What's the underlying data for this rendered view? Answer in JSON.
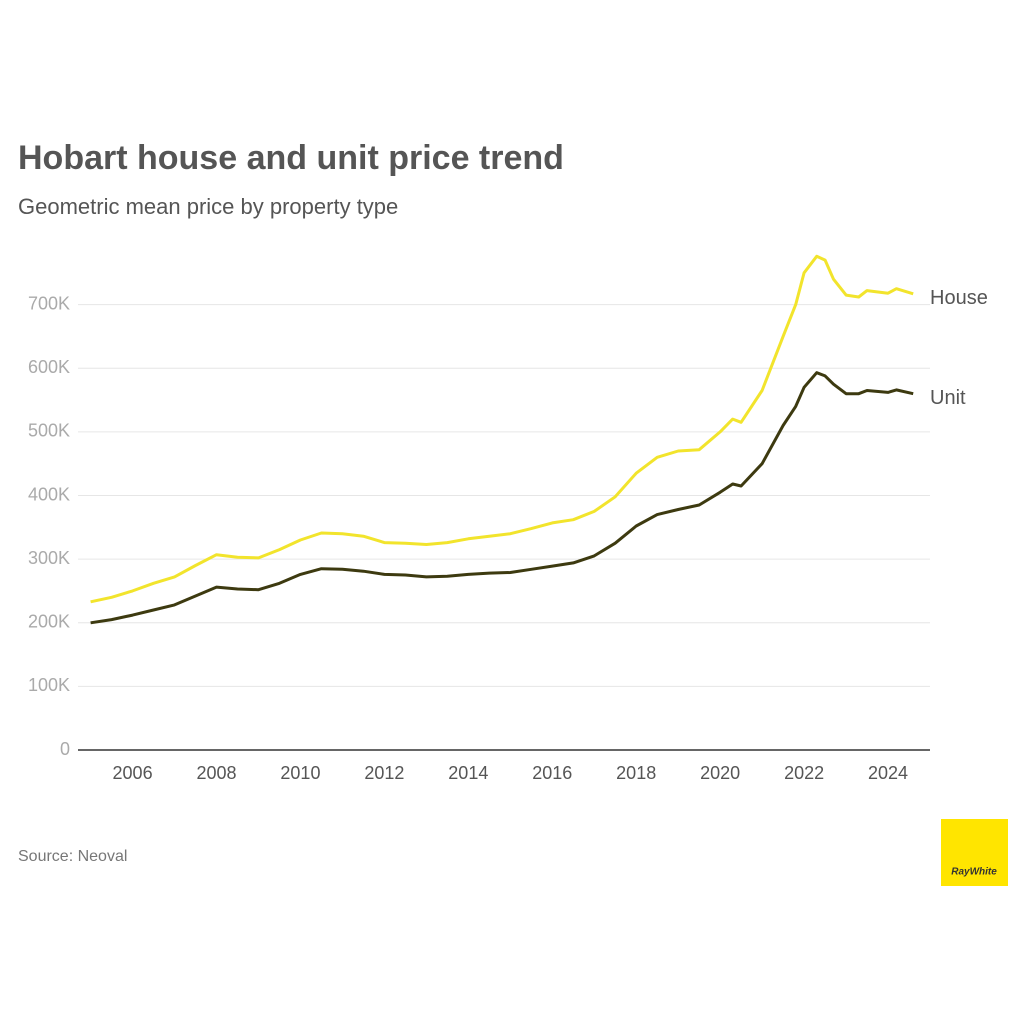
{
  "chart_data": {
    "type": "line",
    "title": "Hobart house and unit price trend",
    "subtitle": "Geometric mean price by property type",
    "source": "Source: Neoval",
    "logo": "RayWhite",
    "x": [
      2005.0,
      2005.5,
      2006.0,
      2006.5,
      2007.0,
      2007.5,
      2008.0,
      2008.5,
      2009.0,
      2009.5,
      2010.0,
      2010.5,
      2011.0,
      2011.5,
      2012.0,
      2012.5,
      2013.0,
      2013.5,
      2014.0,
      2014.5,
      2015.0,
      2015.5,
      2016.0,
      2016.5,
      2017.0,
      2017.5,
      2018.0,
      2018.5,
      2019.0,
      2019.5,
      2020.0,
      2020.3,
      2020.5,
      2021.0,
      2021.5,
      2021.8,
      2022.0,
      2022.3,
      2022.5,
      2022.7,
      2023.0,
      2023.3,
      2023.5,
      2024.0,
      2024.2,
      2024.6
    ],
    "series": [
      {
        "name": "House",
        "color": "#f2e42c",
        "values": [
          233000,
          240000,
          250000,
          262000,
          272000,
          290000,
          307000,
          303000,
          302000,
          315000,
          330000,
          341000,
          340000,
          336000,
          326000,
          325000,
          323000,
          326000,
          332000,
          336000,
          340000,
          348000,
          357000,
          362000,
          375000,
          398000,
          435000,
          460000,
          470000,
          472000,
          500000,
          520000,
          515000,
          565000,
          650000,
          700000,
          750000,
          776000,
          770000,
          740000,
          715000,
          712000,
          722000,
          718000,
          725000,
          717000
        ]
      },
      {
        "name": "Unit",
        "color": "#3d3a10",
        "values": [
          200000,
          205000,
          212000,
          220000,
          228000,
          242000,
          256000,
          253000,
          252000,
          262000,
          276000,
          285000,
          284000,
          281000,
          276000,
          275000,
          272000,
          273000,
          276000,
          278000,
          279000,
          284000,
          289000,
          294000,
          305000,
          325000,
          352000,
          370000,
          378000,
          385000,
          405000,
          418000,
          415000,
          450000,
          510000,
          540000,
          570000,
          593000,
          588000,
          575000,
          560000,
          560000,
          565000,
          562000,
          566000,
          560000
        ]
      }
    ],
    "xlim": [
      2004.7,
      2025.0
    ],
    "xticks": [
      2006,
      2008,
      2010,
      2012,
      2014,
      2016,
      2018,
      2020,
      2022,
      2024
    ],
    "ylim": [
      0,
      800000
    ],
    "yticks": [
      0,
      {
        "value": 100000,
        "label": "100K"
      },
      {
        "value": 200000,
        "label": "200K"
      },
      {
        "value": 300000,
        "label": "300K"
      },
      {
        "value": 400000,
        "label": "400K"
      },
      {
        "value": 500000,
        "label": "500K"
      },
      {
        "value": 600000,
        "label": "600K"
      },
      {
        "value": 700000,
        "label": "700K"
      }
    ],
    "grid": true
  }
}
